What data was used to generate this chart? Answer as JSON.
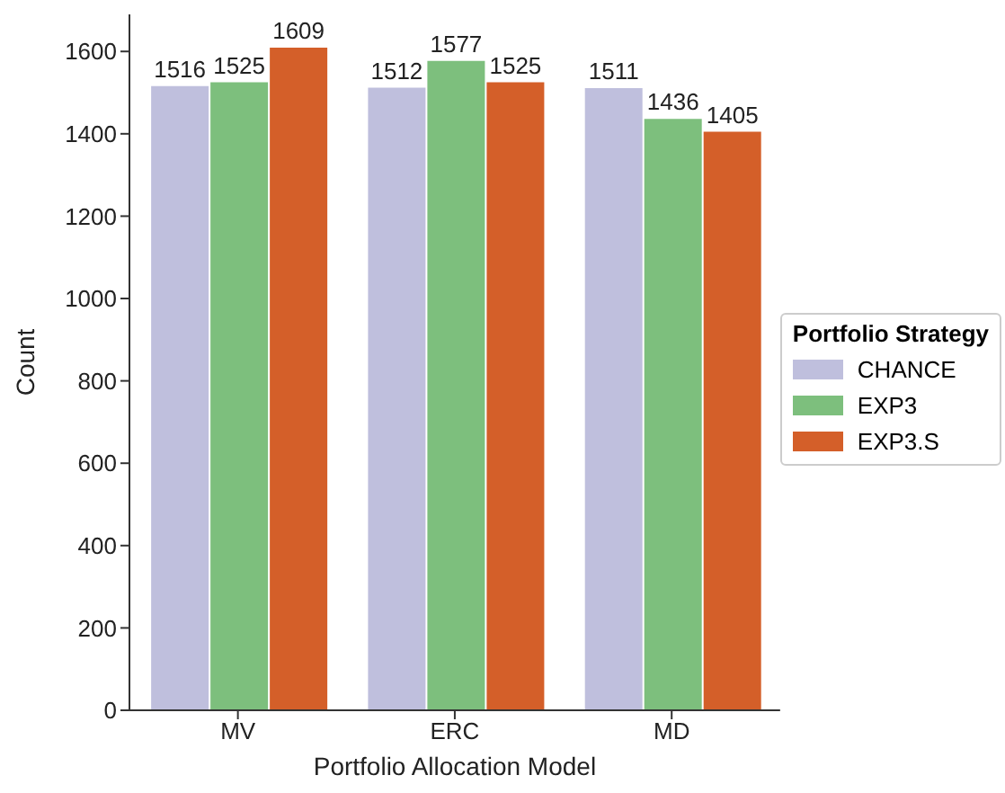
{
  "chart_data": {
    "type": "bar",
    "xlabel": "Portfolio Allocation Model",
    "ylabel": "Count",
    "legend_title": "Portfolio Strategy",
    "categories": [
      "MV",
      "ERC",
      "MD"
    ],
    "series": [
      {
        "name": "CHANCE",
        "color": "#bfbfdd",
        "values": [
          1516,
          1512,
          1511
        ]
      },
      {
        "name": "EXP3",
        "color": "#7dbf7d",
        "values": [
          1525,
          1577,
          1436
        ]
      },
      {
        "name": "EXP3.S",
        "color": "#d45f29",
        "values": [
          1609,
          1525,
          1405
        ]
      }
    ],
    "ylim": [
      0,
      1690
    ],
    "yticks": [
      0,
      200,
      400,
      600,
      800,
      1000,
      1200,
      1400,
      1600
    ],
    "data_labels": true,
    "legend": "right",
    "grid": false
  }
}
